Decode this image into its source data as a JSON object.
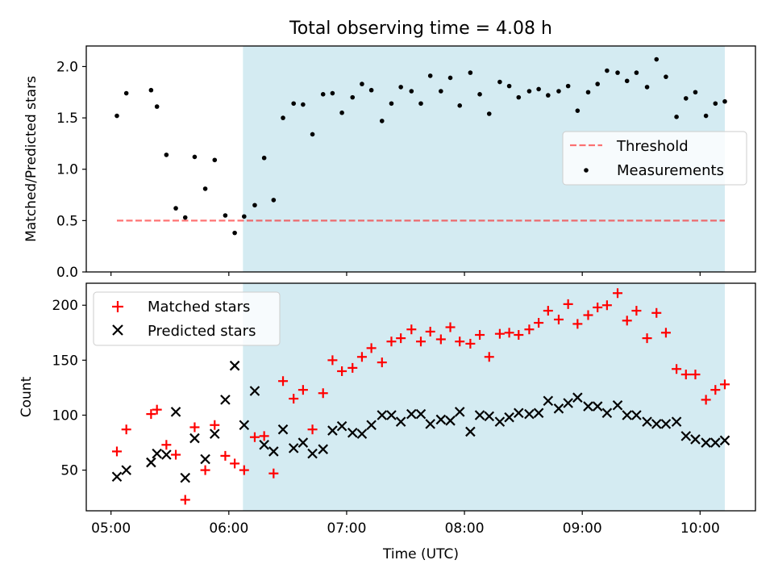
{
  "title": "Total observing time = 4.08 h",
  "colors": {
    "shade": "#add8e6",
    "threshold": "#ff0000",
    "measurement": "#000000",
    "matched": "#ff0000",
    "predicted": "#000000"
  },
  "chart_data": [
    {
      "type": "scatter",
      "panel": "top",
      "title": "Total observing time = 4.08 h",
      "ylabel": "Matched/Predicted stars",
      "xlabel": "",
      "xlim": [
        4.79,
        10.47
      ],
      "ylim": [
        0,
        2.2
      ],
      "yticks": [
        0.0,
        0.5,
        1.0,
        1.5,
        2.0
      ],
      "ytick_labels": [
        "0.0",
        "0.5",
        "1.0",
        "1.5",
        "2.0"
      ],
      "shaded_interval": [
        6.12,
        10.21
      ],
      "legend": {
        "position": "center-right",
        "entries": [
          "Threshold",
          "Measurements"
        ]
      },
      "threshold": {
        "name": "Threshold",
        "y": 0.5,
        "x": [
          5.05,
          10.21
        ],
        "style": "dashed"
      },
      "series": [
        {
          "name": "Measurements",
          "marker": "dot",
          "x": [
            5.05,
            5.13,
            5.34,
            5.39,
            5.47,
            5.55,
            5.63,
            5.71,
            5.8,
            5.88,
            5.97,
            6.05,
            6.13,
            6.22,
            6.3,
            6.38,
            6.46,
            6.55,
            6.63,
            6.71,
            6.8,
            6.88,
            6.96,
            7.05,
            7.13,
            7.21,
            7.3,
            7.38,
            7.46,
            7.55,
            7.63,
            7.71,
            7.8,
            7.88,
            7.96,
            8.05,
            8.13,
            8.21,
            8.3,
            8.38,
            8.46,
            8.55,
            8.63,
            8.71,
            8.8,
            8.88,
            8.96,
            9.05,
            9.13,
            9.21,
            9.3,
            9.38,
            9.46,
            9.55,
            9.63,
            9.71,
            9.8,
            9.88,
            9.96,
            10.05,
            10.13,
            10.21
          ],
          "y": [
            1.52,
            1.74,
            1.77,
            1.61,
            1.14,
            0.62,
            0.53,
            1.12,
            0.81,
            1.09,
            0.55,
            0.38,
            0.54,
            0.65,
            1.11,
            0.7,
            1.5,
            1.64,
            1.63,
            1.34,
            1.73,
            1.74,
            1.55,
            1.7,
            1.83,
            1.77,
            1.47,
            1.64,
            1.8,
            1.76,
            1.64,
            1.91,
            1.76,
            1.89,
            1.62,
            1.94,
            1.73,
            1.54,
            1.85,
            1.81,
            1.7,
            1.76,
            1.78,
            1.72,
            1.76,
            1.81,
            1.57,
            1.75,
            1.83,
            1.96,
            1.94,
            1.86,
            1.94,
            1.8,
            2.07,
            1.9,
            1.51,
            1.69,
            1.75,
            1.52,
            1.64,
            1.66
          ]
        }
      ]
    },
    {
      "type": "scatter",
      "panel": "bottom",
      "ylabel": "Count",
      "xlabel": "Time (UTC)",
      "xlim": [
        4.79,
        10.47
      ],
      "ylim": [
        13,
        220
      ],
      "xticks": [
        5,
        6,
        7,
        8,
        9,
        10
      ],
      "xtick_labels": [
        "05:00",
        "06:00",
        "07:00",
        "08:00",
        "09:00",
        "10:00"
      ],
      "yticks": [
        50,
        100,
        150,
        200
      ],
      "ytick_labels": [
        "50",
        "100",
        "150",
        "200"
      ],
      "shaded_interval": [
        6.12,
        10.21
      ],
      "legend": {
        "position": "top-left",
        "entries": [
          "Matched stars",
          "Predicted stars"
        ]
      },
      "series": [
        {
          "name": "Matched stars",
          "marker": "plus",
          "x": [
            5.05,
            5.13,
            5.34,
            5.39,
            5.47,
            5.55,
            5.63,
            5.71,
            5.8,
            5.88,
            5.97,
            6.05,
            6.13,
            6.22,
            6.3,
            6.38,
            6.46,
            6.55,
            6.63,
            6.71,
            6.8,
            6.88,
            6.96,
            7.05,
            7.13,
            7.21,
            7.3,
            7.38,
            7.46,
            7.55,
            7.63,
            7.71,
            7.8,
            7.88,
            7.96,
            8.05,
            8.13,
            8.21,
            8.3,
            8.38,
            8.46,
            8.55,
            8.63,
            8.71,
            8.8,
            8.88,
            8.96,
            9.05,
            9.13,
            9.21,
            9.3,
            9.38,
            9.46,
            9.55,
            9.63,
            9.71,
            9.8,
            9.88,
            9.96,
            10.05,
            10.13,
            10.21
          ],
          "y": [
            67,
            87,
            101,
            105,
            73,
            64,
            23,
            89,
            50,
            91,
            63,
            56,
            50,
            80,
            81,
            47,
            131,
            115,
            123,
            87,
            120,
            150,
            140,
            143,
            153,
            161,
            148,
            167,
            170,
            178,
            167,
            176,
            169,
            180,
            167,
            165,
            173,
            153,
            174,
            175,
            173,
            178,
            184,
            195,
            187,
            201,
            183,
            191,
            198,
            200,
            211,
            186,
            195,
            170,
            193,
            175,
            142,
            137,
            137,
            114,
            123,
            128
          ]
        },
        {
          "name": "Predicted stars",
          "marker": "x",
          "x": [
            5.05,
            5.13,
            5.34,
            5.39,
            5.47,
            5.55,
            5.63,
            5.71,
            5.8,
            5.88,
            5.97,
            6.05,
            6.13,
            6.22,
            6.3,
            6.38,
            6.46,
            6.55,
            6.63,
            6.71,
            6.8,
            6.88,
            6.96,
            7.05,
            7.13,
            7.21,
            7.3,
            7.38,
            7.46,
            7.55,
            7.63,
            7.71,
            7.8,
            7.88,
            7.96,
            8.05,
            8.13,
            8.21,
            8.3,
            8.38,
            8.46,
            8.55,
            8.63,
            8.71,
            8.8,
            8.88,
            8.96,
            9.05,
            9.13,
            9.21,
            9.3,
            9.38,
            9.46,
            9.55,
            9.63,
            9.71,
            9.8,
            9.88,
            9.96,
            10.05,
            10.13,
            10.21
          ],
          "y": [
            44,
            50,
            57,
            65,
            64,
            103,
            43,
            79,
            60,
            83,
            114,
            145,
            91,
            122,
            73,
            67,
            87,
            70,
            75,
            65,
            69,
            86,
            90,
            84,
            83,
            91,
            100,
            100,
            94,
            101,
            101,
            92,
            96,
            95,
            103,
            85,
            100,
            99,
            94,
            98,
            102,
            101,
            102,
            113,
            106,
            111,
            116,
            108,
            108,
            102,
            109,
            100,
            100,
            94,
            92,
            92,
            94,
            81,
            78,
            75,
            75,
            77
          ]
        }
      ]
    }
  ]
}
